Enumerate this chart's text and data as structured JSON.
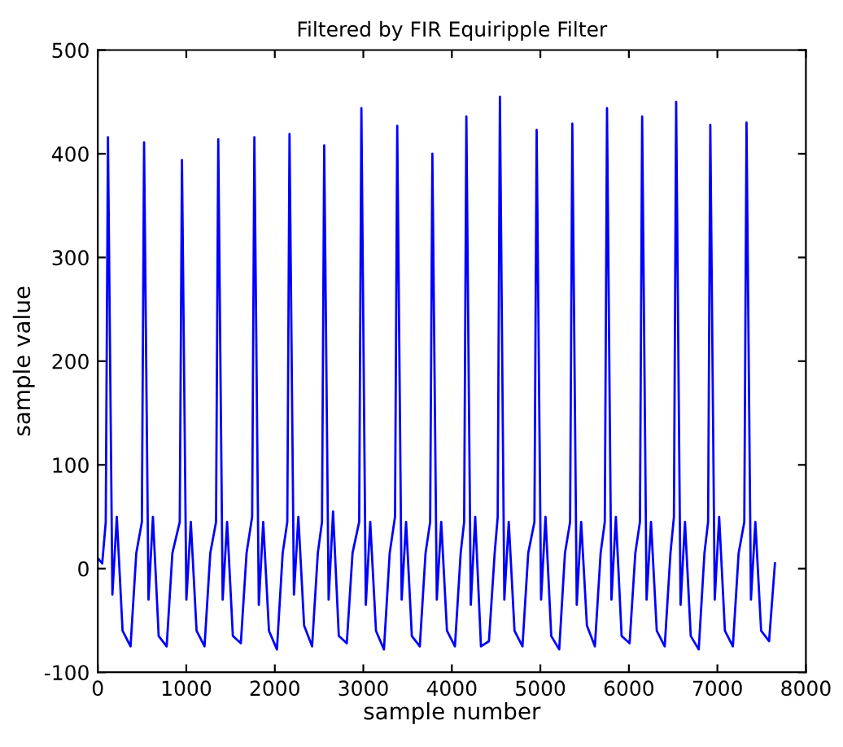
{
  "chart_data": {
    "type": "line",
    "title": "Filtered by FIR Equiripple Filter",
    "xlabel": "sample number",
    "ylabel": "sample value",
    "xlim": [
      0,
      8000
    ],
    "xticks": [
      0,
      1000,
      2000,
      3000,
      4000,
      5000,
      6000,
      7000,
      8000
    ],
    "ylim": [
      -100,
      500
    ],
    "yticks": [
      -100,
      0,
      100,
      200,
      300,
      400,
      500
    ],
    "grid": false,
    "legend": false,
    "marker": "none",
    "line_style": "solid",
    "series": [
      {
        "color": "#0000ff",
        "x": [
          0,
          50,
          90,
          115,
          165,
          215,
          280,
          370,
          435,
          498,
          523,
          573,
          623,
          688,
          778,
          843,
          926,
          951,
          1001,
          1051,
          1116,
          1206,
          1271,
          1336,
          1361,
          1411,
          1461,
          1526,
          1616,
          1681,
          1744,
          1769,
          1819,
          1869,
          1934,
          2024,
          2089,
          2141,
          2166,
          2216,
          2266,
          2331,
          2421,
          2486,
          2533,
          2558,
          2608,
          2658,
          2723,
          2813,
          2878,
          2953,
          2978,
          3028,
          3078,
          3143,
          3233,
          3298,
          3358,
          3383,
          3433,
          3483,
          3548,
          3638,
          3703,
          3755,
          3780,
          3830,
          3880,
          3945,
          4035,
          4100,
          4139,
          4164,
          4214,
          4264,
          4329,
          4419,
          4484,
          4518,
          4543,
          4593,
          4643,
          4708,
          4798,
          4863,
          4933,
          4958,
          5008,
          5058,
          5123,
          5213,
          5278,
          5336,
          5361,
          5411,
          5461,
          5526,
          5616,
          5681,
          5728,
          5753,
          5803,
          5853,
          5918,
          6008,
          6073,
          6125,
          6150,
          6200,
          6250,
          6315,
          6405,
          6470,
          6509,
          6534,
          6584,
          6634,
          6699,
          6789,
          6854,
          6895,
          6920,
          6970,
          7020,
          7085,
          7175,
          7240,
          7304,
          7329,
          7379,
          7429,
          7494,
          7584,
          7650
        ],
        "values": [
          10,
          5,
          45,
          416,
          -25,
          50,
          -60,
          -75,
          15,
          45,
          411,
          -30,
          50,
          -65,
          -75,
          15,
          45,
          394,
          -30,
          45,
          -60,
          -75,
          15,
          45,
          414,
          -30,
          45,
          -65,
          -72,
          15,
          50,
          416,
          -35,
          45,
          -60,
          -78,
          15,
          45,
          419,
          -25,
          50,
          -55,
          -75,
          15,
          45,
          408,
          -30,
          55,
          -65,
          -72,
          15,
          45,
          444,
          -35,
          45,
          -60,
          -78,
          15,
          50,
          427,
          -30,
          45,
          -65,
          -75,
          15,
          45,
          400,
          -30,
          45,
          -60,
          -75,
          15,
          45,
          436,
          -35,
          50,
          -75,
          -70,
          15,
          50,
          455,
          -30,
          45,
          -60,
          -75,
          15,
          45,
          423,
          -30,
          50,
          -65,
          -78,
          15,
          45,
          429,
          -35,
          45,
          -55,
          -75,
          15,
          45,
          444,
          -30,
          50,
          -65,
          -72,
          15,
          45,
          436,
          -30,
          45,
          -60,
          -75,
          15,
          50,
          450,
          -35,
          45,
          -65,
          -78,
          15,
          45,
          428,
          -30,
          50,
          -60,
          -75,
          15,
          45,
          430,
          -30,
          45,
          -60,
          -70,
          5
        ]
      }
    ]
  }
}
